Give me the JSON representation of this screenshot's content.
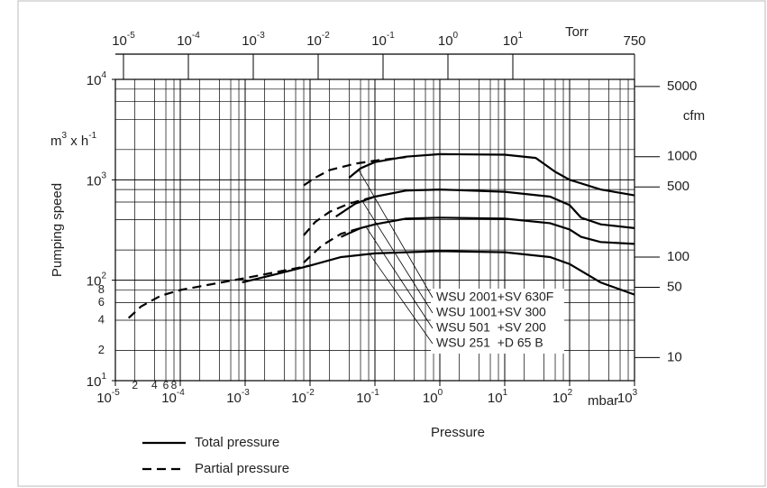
{
  "chart_data": {
    "type": "line",
    "log_x": true,
    "log_y": true,
    "grid": true,
    "color": "#000000",
    "xlabel": "Pressure",
    "xunit": "mbar",
    "ylabel": "Pumping speed",
    "yunit": [
      "m",
      "3",
      " x h",
      "-1"
    ],
    "xlim": [
      1e-05,
      1000
    ],
    "xticks": [
      {
        "value": 1e-05,
        "label": "10",
        "exponent": "-5"
      },
      {
        "value": 0.0001,
        "label": "10",
        "exponent": "-4"
      },
      {
        "value": 0.001,
        "label": "10",
        "exponent": "-3"
      },
      {
        "value": 0.01,
        "label": "10",
        "exponent": "-2"
      },
      {
        "value": 0.1,
        "label": "10",
        "exponent": "-1"
      },
      {
        "value": 1,
        "label": "10",
        "exponent": "0"
      },
      {
        "value": 10,
        "label": "10",
        "exponent": "1"
      },
      {
        "value": 100,
        "label": "10",
        "exponent": "2"
      },
      {
        "value": 1000,
        "label": "10",
        "exponent": "3"
      }
    ],
    "x_minor": [
      2,
      4,
      6,
      8
    ],
    "ylim": [
      10,
      10000
    ],
    "yticks": [
      {
        "value": 10,
        "label": "10",
        "exponent": "1"
      },
      {
        "value": 100,
        "label": "10",
        "exponent": "2"
      },
      {
        "value": 1000,
        "label": "10",
        "exponent": "3"
      },
      {
        "value": 10000,
        "label": "10",
        "exponent": "4"
      }
    ],
    "y_minor": [
      2,
      4,
      6,
      8
    ],
    "y2label": "cfm",
    "y2lim": [
      5.886,
      5886
    ],
    "y2ticks": [
      10,
      50,
      100,
      500,
      1000,
      5000
    ],
    "top_label": "Torr",
    "top_lim": [
      7.5e-06,
      750
    ],
    "top_ticks": [
      {
        "value": 1e-05,
        "label": "10",
        "exponent": "-5"
      },
      {
        "value": 0.0001,
        "label": "10",
        "exponent": "-4"
      },
      {
        "value": 0.001,
        "label": "10",
        "exponent": "-3"
      },
      {
        "value": 0.01,
        "label": "10",
        "exponent": "-2"
      },
      {
        "value": 0.1,
        "label": "10",
        "exponent": "-1"
      },
      {
        "value": 1,
        "label": "10",
        "exponent": "0"
      },
      {
        "value": 10,
        "label": "10",
        "exponent": "1"
      },
      750
    ],
    "legend": {
      "total": "Total pressure",
      "partial": "Partial pressure"
    },
    "curves": [
      {
        "name": "WSU 2001+SV 630F",
        "total_x": [
          0.04,
          0.06,
          0.1,
          0.3,
          1,
          10,
          30,
          60,
          100,
          300,
          1000
        ],
        "total": [
          1050,
          1300,
          1500,
          1700,
          1800,
          1780,
          1650,
          1200,
          1000,
          800,
          700
        ],
        "partial_x": [
          0.008,
          0.012,
          0.02,
          0.05,
          0.1,
          0.3
        ],
        "partial": [
          880,
          1050,
          1250,
          1450,
          1550,
          1680
        ]
      },
      {
        "name": "WSU 1001+SV 300",
        "total_x": [
          0.025,
          0.05,
          0.1,
          0.3,
          1,
          10,
          50,
          100,
          150,
          300,
          1000
        ],
        "total": [
          430,
          580,
          680,
          780,
          800,
          760,
          680,
          560,
          420,
          360,
          330
        ],
        "partial_x": [
          0.008,
          0.012,
          0.02,
          0.04,
          0.1
        ],
        "partial": [
          280,
          380,
          480,
          580,
          680
        ]
      },
      {
        "name": "WSU 501  +SV 200",
        "total_x": [
          0.03,
          0.06,
          0.1,
          0.3,
          1,
          10,
          50,
          100,
          150,
          300,
          1000
        ],
        "total": [
          270,
          330,
          360,
          410,
          420,
          410,
          370,
          320,
          270,
          240,
          230
        ],
        "partial_x": [
          0.008,
          0.015,
          0.03,
          0.06
        ],
        "partial": [
          150,
          220,
          290,
          330
        ]
      },
      {
        "name": "WSU 251  +D 65 B",
        "total_x": [
          0.0009,
          0.003,
          0.01,
          0.03,
          0.1,
          1,
          10,
          50,
          100,
          300,
          1000
        ],
        "total": [
          95,
          115,
          140,
          170,
          185,
          195,
          190,
          170,
          145,
          95,
          72
        ],
        "partial_x": [
          1.6e-05,
          2.5e-05,
          5e-05,
          0.0001,
          0.001,
          0.01
        ],
        "partial": [
          42,
          55,
          70,
          80,
          105,
          140
        ]
      }
    ]
  }
}
